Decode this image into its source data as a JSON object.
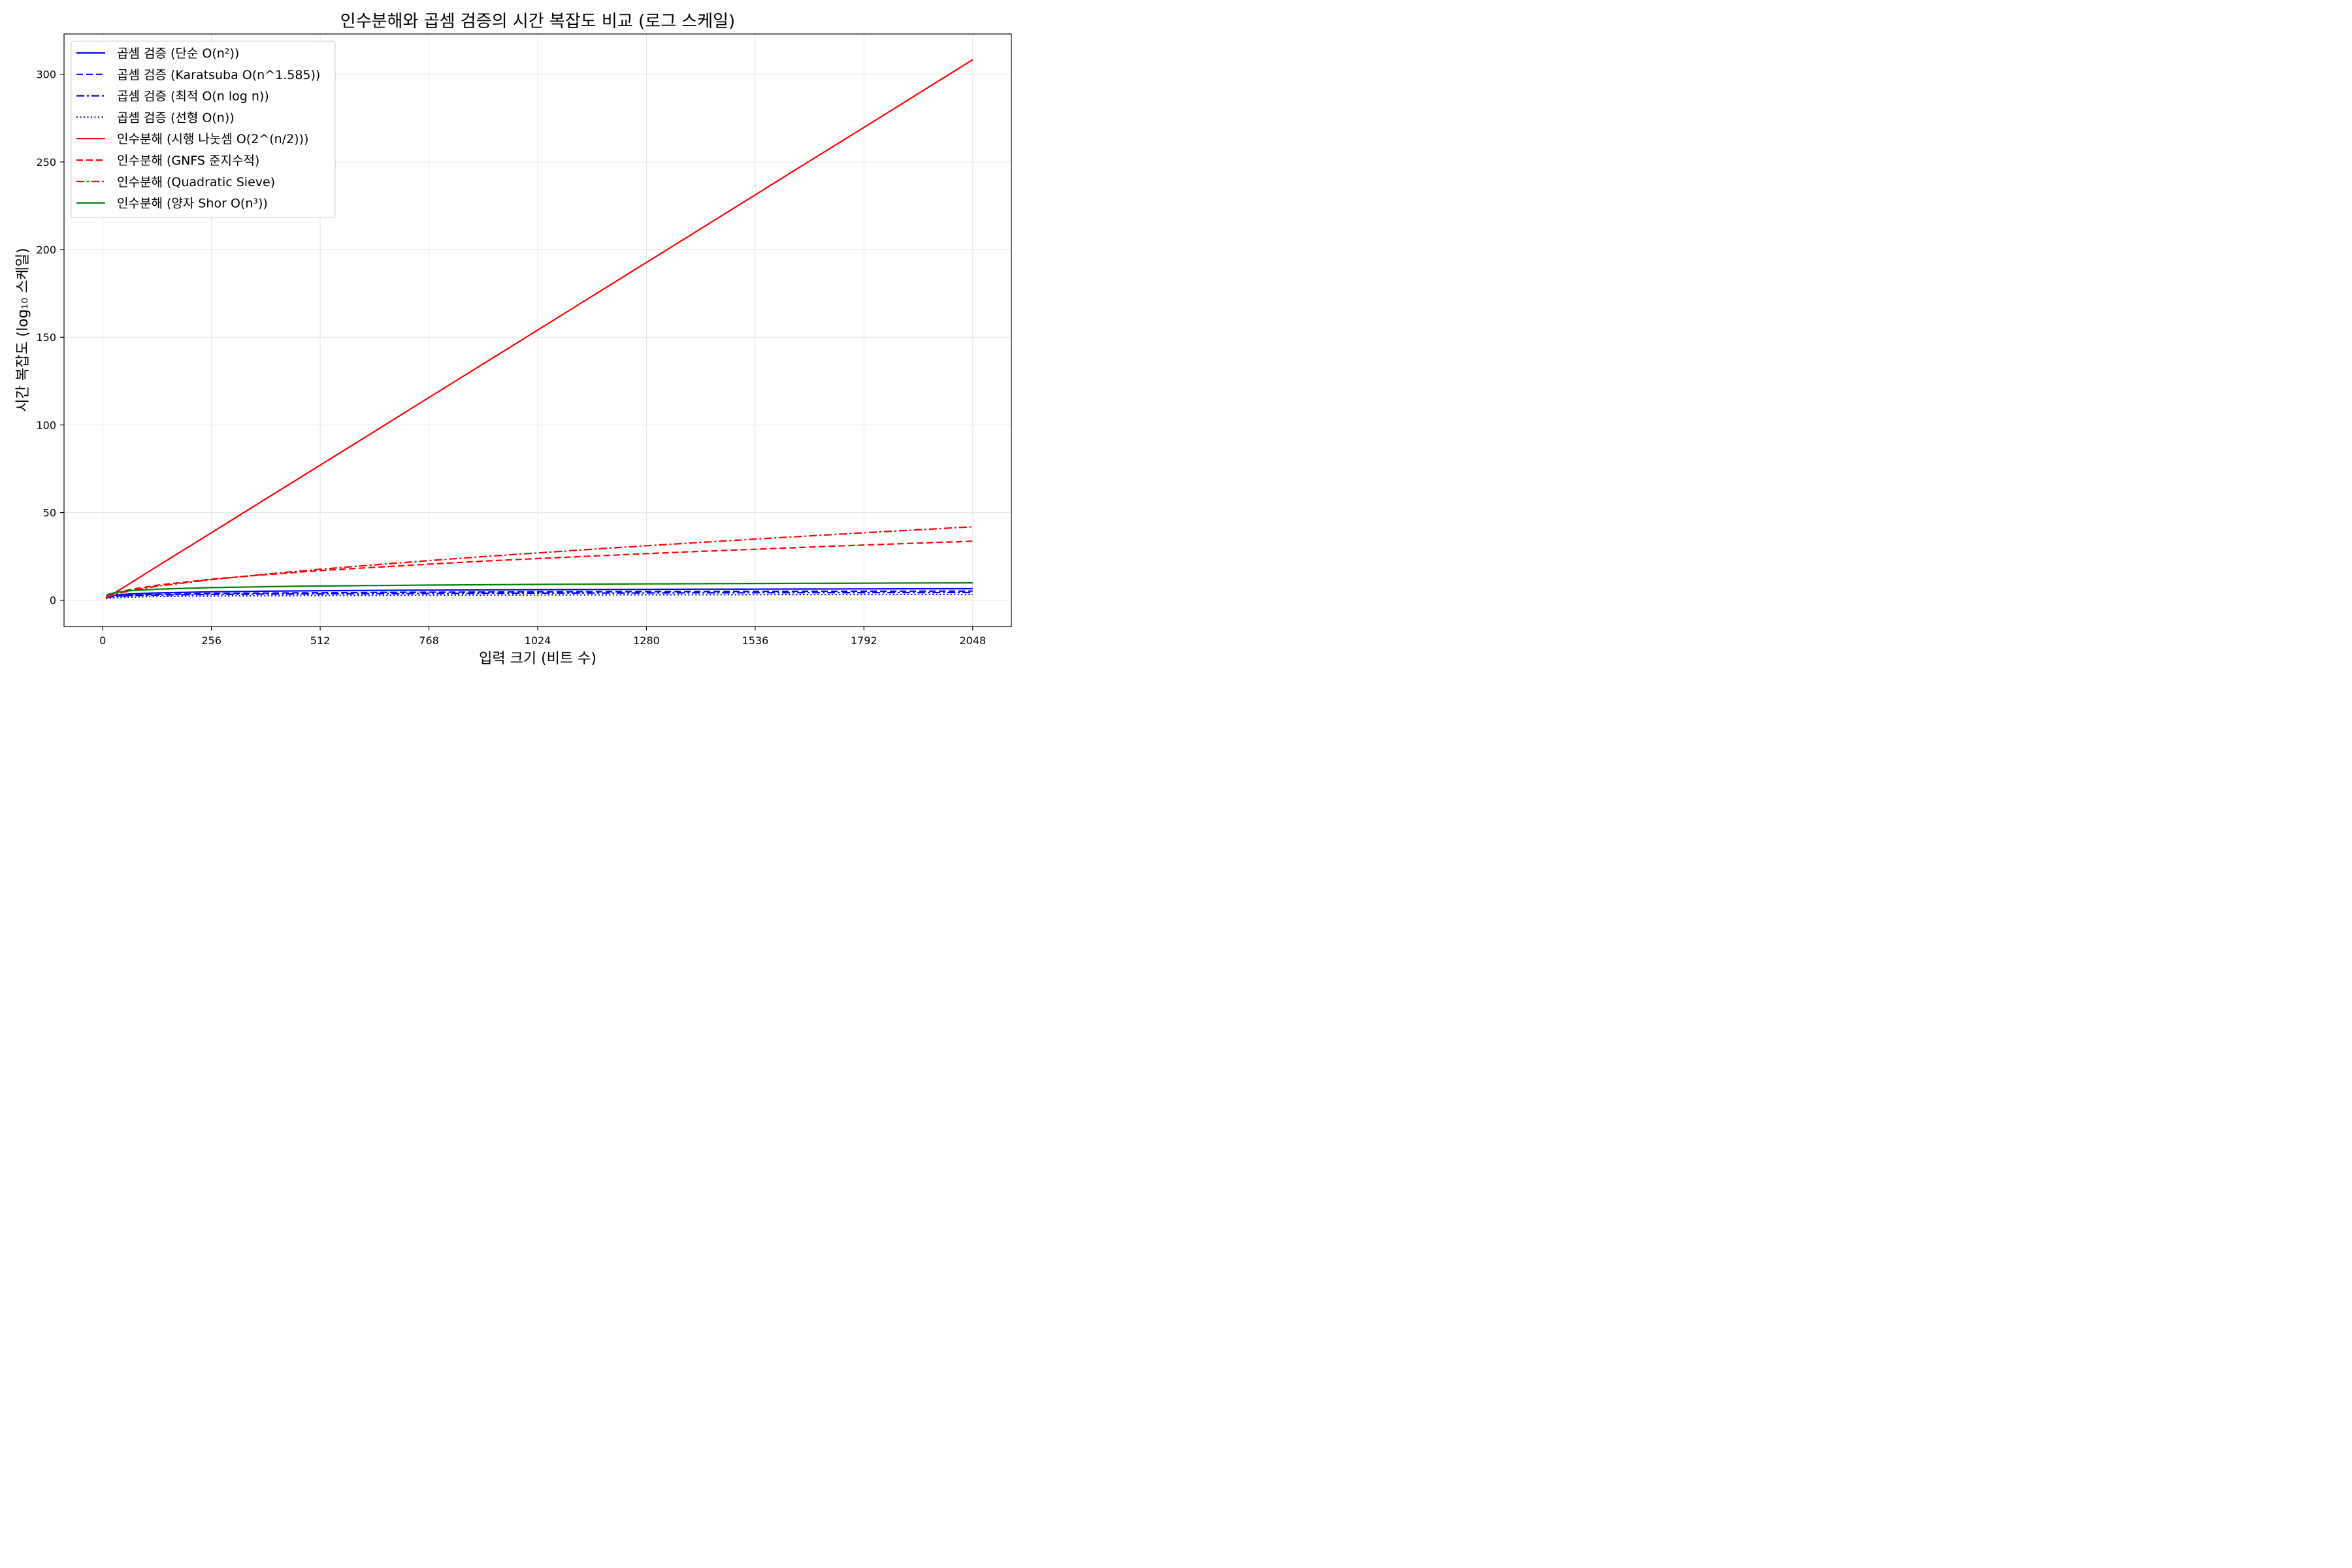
{
  "chart_data": {
    "type": "line",
    "title": "인수분해와 곱셈 검증의 시간 복잡도 비교 (로그 스케일)",
    "xlabel": "입력 크기 (비트 수)",
    "ylabel": "시간 복잡도 (log₁₀ 스케일)",
    "xlim": [
      -91,
      2139
    ],
    "ylim": [
      -15,
      323
    ],
    "x_ticks": [
      0,
      256,
      512,
      768,
      1024,
      1280,
      1536,
      1792,
      2048
    ],
    "y_ticks": [
      0,
      50,
      100,
      150,
      200,
      250,
      300
    ],
    "x_tick_labels": [
      "0",
      "256",
      "512",
      "768",
      "1024",
      "1280",
      "1536",
      "1792",
      "2048"
    ],
    "y_tick_labels": [
      "0",
      "50",
      "100",
      "150",
      "200",
      "250",
      "300"
    ],
    "grid": true,
    "legend_position": "top-left",
    "x": [
      8,
      16,
      32,
      64,
      128,
      256,
      384,
      512,
      640,
      768,
      896,
      1024,
      1152,
      1280,
      1408,
      1536,
      1664,
      1792,
      1920,
      2048
    ],
    "series": [
      {
        "name": "곱셈 검증 (단순 O(n²))",
        "color": "#0000ff",
        "dash": "solid",
        "values": [
          1.81,
          2.41,
          3.01,
          3.61,
          4.21,
          4.82,
          5.17,
          5.42,
          5.61,
          5.77,
          5.91,
          6.02,
          6.12,
          6.21,
          6.3,
          6.37,
          6.44,
          6.51,
          6.57,
          6.62
        ]
      },
      {
        "name": "곱셈 검증 (Karatsuba O(n^1.585))",
        "color": "#0000ff",
        "dash": "dashed",
        "values": [
          1.43,
          1.91,
          2.39,
          2.86,
          3.34,
          3.82,
          4.1,
          4.29,
          4.45,
          4.57,
          4.68,
          4.77,
          4.85,
          4.92,
          4.99,
          5.05,
          5.11,
          5.16,
          5.2,
          5.25
        ]
      },
      {
        "name": "곱셈 검증 (최적 O(n log n))",
        "color": "#0000ff",
        "dash": "dashdot",
        "values": [
          1.38,
          1.81,
          2.19,
          2.59,
          2.95,
          3.31,
          3.52,
          3.67,
          3.79,
          3.89,
          3.97,
          4.04,
          4.11,
          4.16,
          4.22,
          4.26,
          4.31,
          4.35,
          4.39,
          4.42
        ]
      },
      {
        "name": "곱셈 검증 (선형 O(n))",
        "color": "#0000ff",
        "dash": "dotted",
        "values": [
          0.9,
          1.2,
          1.51,
          1.81,
          2.11,
          2.41,
          2.58,
          2.71,
          2.81,
          2.89,
          2.95,
          3.01,
          3.06,
          3.11,
          3.15,
          3.19,
          3.22,
          3.25,
          3.28,
          3.31
        ]
      },
      {
        "name": "인수분해 (시행 나눗셈 O(2^(n/2)))",
        "color": "#ff0000",
        "dash": "solid",
        "values": [
          1.2,
          2.4,
          4.8,
          9.6,
          19.3,
          38.5,
          57.8,
          77.1,
          96.3,
          115.6,
          134.9,
          154.1,
          173.4,
          192.7,
          211.9,
          231.2,
          250.5,
          269.7,
          289.0,
          308.3
        ]
      },
      {
        "name": "인수분해 (GNFS 준지수적)",
        "color": "#ff0000",
        "dash": "dashed",
        "values": [
          2.1,
          3.0,
          4.3,
          6.1,
          8.6,
          12.0,
          14.6,
          16.9,
          18.8,
          20.6,
          22.3,
          23.8,
          25.2,
          26.6,
          27.9,
          29.1,
          30.3,
          31.5,
          32.6,
          33.7
        ]
      },
      {
        "name": "인수분해 (Quadratic Sieve)",
        "color": "#ff0000",
        "dash": "dashdot",
        "values": [
          1.6,
          2.4,
          3.6,
          5.4,
          8.0,
          11.8,
          14.9,
          17.7,
          20.2,
          22.6,
          24.9,
          27.0,
          29.1,
          31.1,
          33.0,
          34.9,
          36.7,
          38.5,
          40.2,
          41.9
        ]
      },
      {
        "name": "인수분해 (양자 Shor O(n³))",
        "color": "#008000",
        "dash": "solid",
        "values": [
          2.71,
          3.61,
          4.52,
          5.42,
          6.32,
          7.22,
          7.75,
          8.13,
          8.42,
          8.66,
          8.86,
          9.03,
          9.19,
          9.32,
          9.44,
          9.56,
          9.66,
          9.76,
          9.85,
          9.93
        ]
      }
    ]
  }
}
